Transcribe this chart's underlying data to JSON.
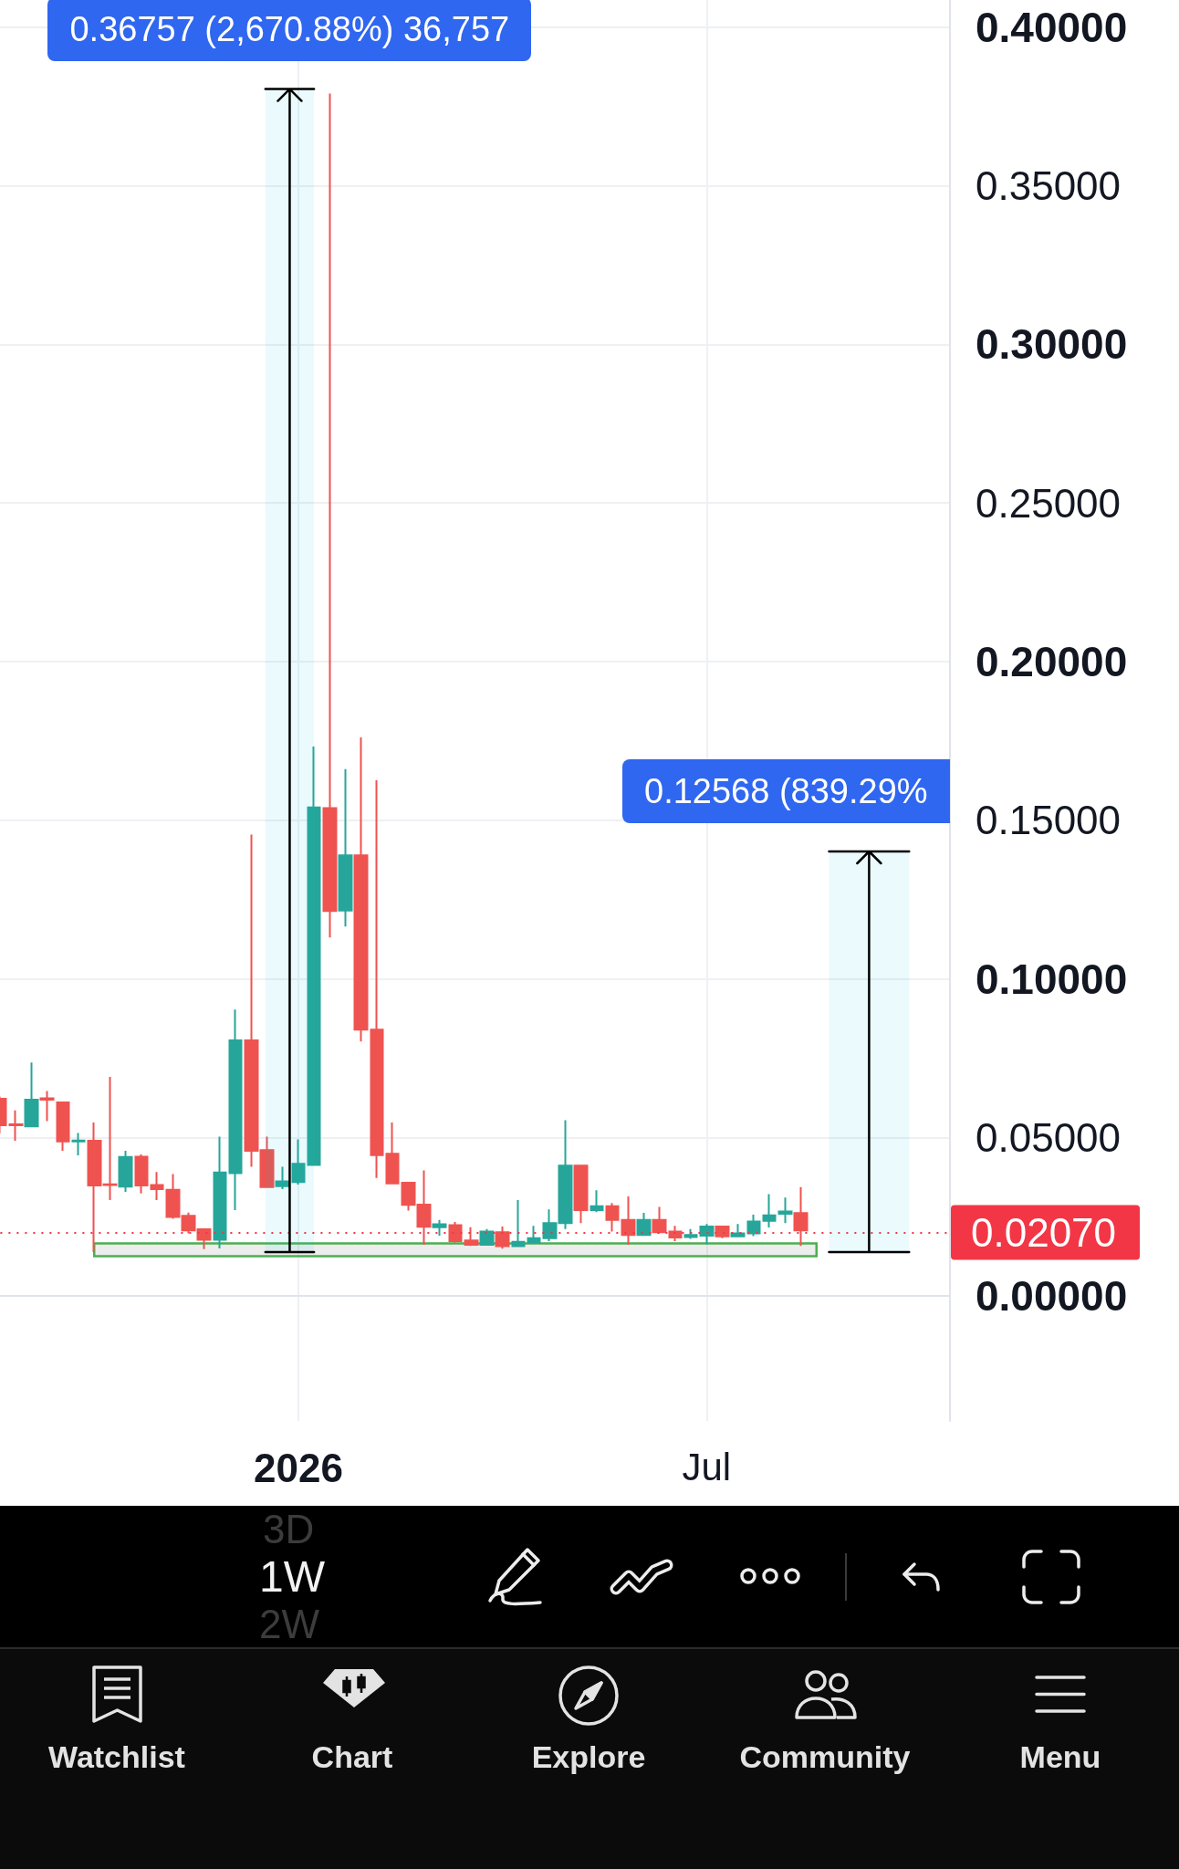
{
  "chart_data": {
    "type": "candlestick",
    "categories": [
      null,
      null,
      null,
      null,
      null,
      null,
      null,
      null,
      null,
      null,
      null,
      null,
      null,
      null,
      null,
      null,
      null,
      null,
      null,
      "2026",
      null,
      null,
      null,
      null,
      null,
      null,
      null,
      null,
      null,
      null,
      null,
      null,
      null,
      null,
      null,
      null,
      null,
      null,
      null,
      null,
      null,
      null,
      null,
      null,
      null,
      "Jul",
      null,
      null,
      null,
      null,
      null,
      null,
      null,
      null,
      null,
      null,
      null,
      null,
      null,
      null,
      null
    ],
    "ohlc": [
      [
        0.0622,
        0.0629,
        0.0513,
        0.0538
      ],
      [
        0.0541,
        0.0585,
        0.0489,
        0.0538
      ],
      [
        0.0535,
        0.0736,
        0.0532,
        0.0619
      ],
      [
        0.0623,
        0.0646,
        0.0551,
        0.0619
      ],
      [
        0.061,
        0.0612,
        0.0458,
        0.0487
      ],
      [
        0.0487,
        0.0514,
        0.0443,
        0.049
      ],
      [
        0.0489,
        0.0547,
        0.0138,
        0.0348
      ],
      [
        0.0352,
        0.0691,
        0.0302,
        0.035
      ],
      [
        0.0345,
        0.0458,
        0.0328,
        0.0438
      ],
      [
        0.0439,
        0.0446,
        0.0323,
        0.0348
      ],
      [
        0.035,
        0.0391,
        0.0302,
        0.0337
      ],
      [
        0.0335,
        0.0384,
        0.0243,
        0.0249
      ],
      [
        0.0253,
        0.0263,
        0.0197,
        0.0207
      ],
      [
        0.021,
        0.0212,
        0.0148,
        0.0177
      ],
      [
        0.0177,
        0.0502,
        0.015,
        0.0389
      ],
      [
        0.0387,
        0.0903,
        0.0271,
        0.0806
      ],
      [
        0.0806,
        0.1455,
        0.0407,
        0.0458
      ],
      [
        0.046,
        0.0502,
        0.0341,
        0.0343
      ],
      [
        0.0346,
        0.0407,
        0.0337,
        0.0361
      ],
      [
        0.0359,
        0.0494,
        0.0351,
        0.0417
      ],
      [
        0.0413,
        0.1732,
        0.0411,
        0.154
      ],
      [
        0.1538,
        0.3791,
        0.113,
        0.1214
      ],
      [
        0.1215,
        0.1661,
        0.1165,
        0.1389
      ],
      [
        0.1389,
        0.1761,
        0.0802,
        0.084
      ],
      [
        0.084,
        0.1626,
        0.0372,
        0.0444
      ],
      [
        0.0448,
        0.0547,
        0.0353,
        0.0355
      ],
      [
        0.0357,
        0.0357,
        0.0269,
        0.0287
      ],
      [
        0.0288,
        0.0396,
        0.0161,
        0.0218
      ],
      [
        0.0217,
        0.024,
        0.019,
        0.0226
      ],
      [
        0.0223,
        0.0233,
        0.0168,
        0.0173
      ],
      [
        0.0175,
        0.0217,
        0.0158,
        0.0161
      ],
      [
        0.0161,
        0.0211,
        0.0161,
        0.0203
      ],
      [
        0.0201,
        0.0219,
        0.0149,
        0.0157
      ],
      [
        0.0157,
        0.0302,
        0.0157,
        0.0171
      ],
      [
        0.0168,
        0.0221,
        0.0165,
        0.0182
      ],
      [
        0.0182,
        0.0273,
        0.0173,
        0.023
      ],
      [
        0.023,
        0.0554,
        0.0211,
        0.0411
      ],
      [
        0.0411,
        0.0411,
        0.023,
        0.0271
      ],
      [
        0.0271,
        0.0333,
        0.0264,
        0.0283
      ],
      [
        0.0283,
        0.0293,
        0.0203,
        0.024
      ],
      [
        0.024,
        0.0314,
        0.0161,
        0.0192
      ],
      [
        0.0192,
        0.0262,
        0.0192,
        0.024
      ],
      [
        0.024,
        0.0281,
        0.0197,
        0.0201
      ],
      [
        0.0203,
        0.0221,
        0.0173,
        0.0184
      ],
      [
        0.0186,
        0.0211,
        0.018,
        0.0192
      ],
      [
        0.019,
        0.0227,
        0.0163,
        0.0219
      ],
      [
        0.0219,
        0.0222,
        0.0182,
        0.0188
      ],
      [
        0.0188,
        0.0227,
        0.0188,
        0.0197
      ],
      [
        0.0197,
        0.0256,
        0.0189,
        0.0235
      ],
      [
        0.0237,
        0.0321,
        0.0216,
        0.0254
      ],
      [
        0.0259,
        0.031,
        0.023,
        0.0266
      ],
      [
        0.0261,
        0.0343,
        0.0158,
        0.0207
      ],
      null,
      null,
      null,
      null,
      null,
      null,
      null,
      null,
      null
    ],
    "ylim": [
      -0.0394,
      0.4086
    ],
    "yticks": [
      {
        "value": 0,
        "label": "0.00000"
      },
      {
        "value": 0.05,
        "label": "0.05000"
      },
      {
        "value": 0.1,
        "label": "0.10000"
      },
      {
        "value": 0.15,
        "label": "0.15000"
      },
      {
        "value": 0.2,
        "label": "0.20000"
      },
      {
        "value": 0.25,
        "label": "0.25000"
      },
      {
        "value": 0.3,
        "label": "0.30000"
      },
      {
        "value": 0.35,
        "label": "0.35000"
      },
      {
        "value": 0.4,
        "label": "0.40000"
      }
    ],
    "grid": true,
    "ref_lines": [
      {
        "axis": "y",
        "value": 0.0207,
        "label": "0.02070",
        "color": "#f23645",
        "line_style": "dotted"
      }
    ],
    "bands": [
      {
        "axis": "y",
        "from": 0.0125,
        "to": 0.0166,
        "color": "#4caf50"
      }
    ],
    "annotations": [
      "0.36757 (2,670.88%) 36,757",
      "0.12568 (839.29%",
      "3D",
      "1W",
      "2W",
      "Watchlist",
      "Chart",
      "Explore",
      "Community",
      "Menu"
    ]
  }
}
